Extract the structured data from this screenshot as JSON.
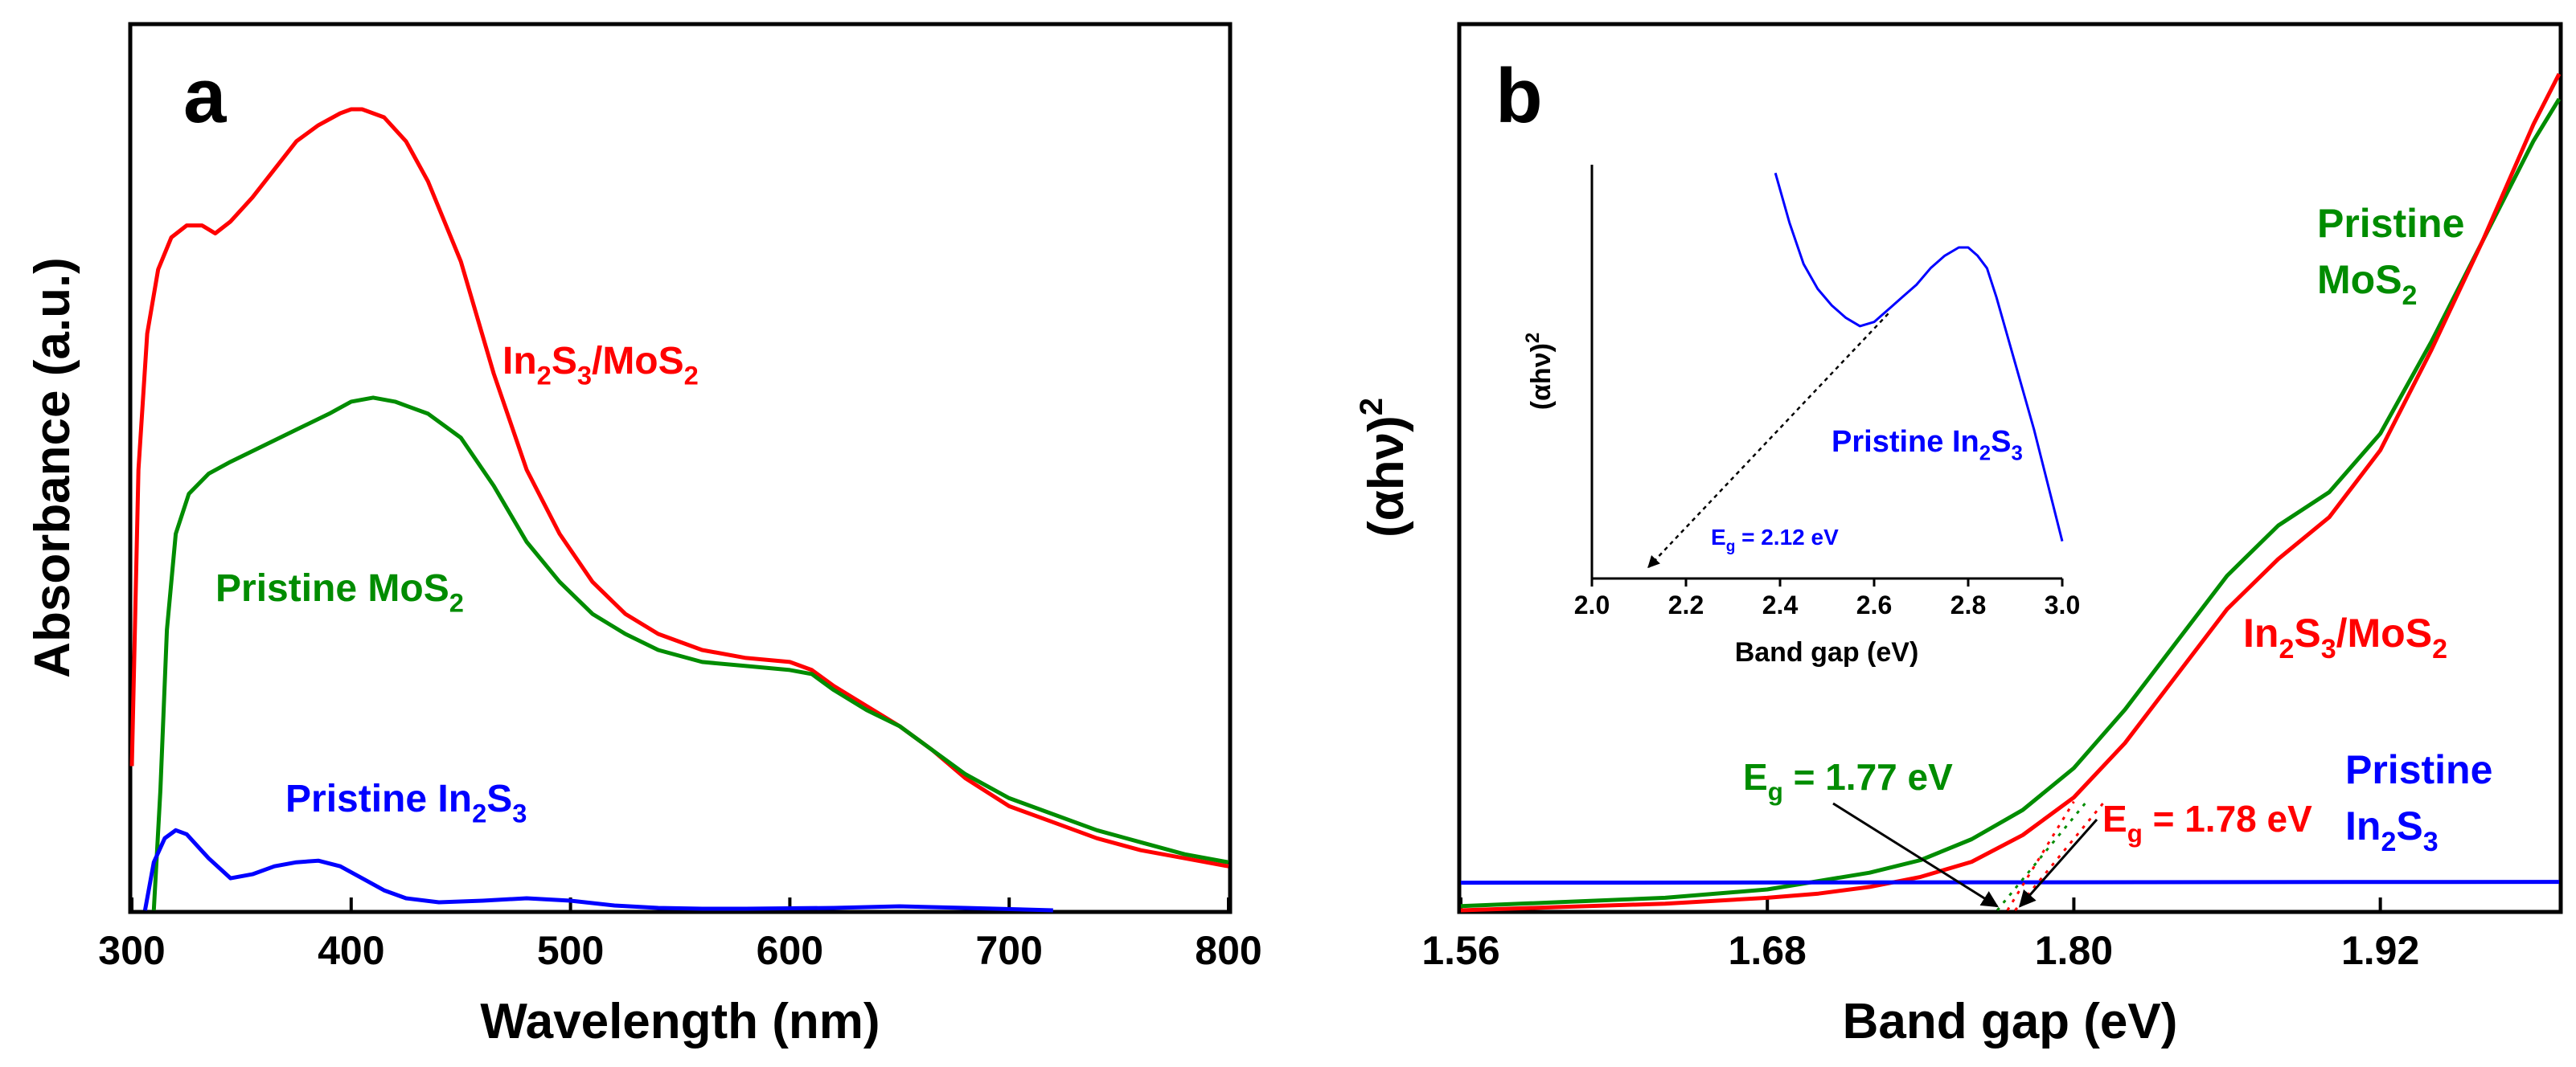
{
  "chart_data": [
    {
      "panel": "a",
      "type": "line",
      "xlabel": "Wavelength (nm)",
      "ylabel": "Absorbance (a.u.)",
      "xlim": [
        300,
        800
      ],
      "ylim": [
        0,
        1
      ],
      "xticks": [
        "300",
        "400",
        "500",
        "600",
        "700",
        "800"
      ],
      "series": [
        {
          "name": "In2S3/MoS2",
          "label_main": [
            "In",
            "S",
            "/MoS",
            ""
          ],
          "label_sub": [
            "2",
            "3",
            "2",
            ""
          ],
          "color": "#ff0000",
          "x": [
            300,
            303,
            307,
            312,
            318,
            325,
            332,
            338,
            345,
            355,
            365,
            375,
            385,
            395,
            400,
            405,
            415,
            425,
            435,
            450,
            465,
            480,
            495,
            510,
            525,
            540,
            560,
            580,
            600,
            610,
            620,
            635,
            650,
            665,
            680,
            700,
            720,
            740,
            760,
            780,
            800
          ],
          "y": [
            0.18,
            0.55,
            0.72,
            0.8,
            0.84,
            0.855,
            0.855,
            0.845,
            0.86,
            0.89,
            0.925,
            0.96,
            0.98,
            0.995,
            1.0,
            1.0,
            0.99,
            0.96,
            0.91,
            0.81,
            0.67,
            0.55,
            0.47,
            0.41,
            0.37,
            0.345,
            0.325,
            0.315,
            0.31,
            0.3,
            0.28,
            0.255,
            0.23,
            0.2,
            0.165,
            0.13,
            0.11,
            0.09,
            0.075,
            0.065,
            0.055
          ]
        },
        {
          "name": "Pristine MoS2",
          "label_main": [
            "Pristine MoS",
            ""
          ],
          "label_sub": [
            "2",
            ""
          ],
          "color": "#008c00",
          "x": [
            310,
            313,
            316,
            320,
            326,
            335,
            345,
            360,
            375,
            390,
            400,
            410,
            420,
            435,
            450,
            465,
            480,
            495,
            510,
            525,
            540,
            560,
            580,
            600,
            610,
            620,
            635,
            650,
            665,
            680,
            700,
            720,
            740,
            760,
            780,
            800
          ],
          "y": [
            0.0,
            0.15,
            0.35,
            0.47,
            0.52,
            0.545,
            0.56,
            0.58,
            0.6,
            0.62,
            0.635,
            0.64,
            0.635,
            0.62,
            0.59,
            0.53,
            0.46,
            0.41,
            0.37,
            0.345,
            0.325,
            0.31,
            0.305,
            0.3,
            0.295,
            0.275,
            0.25,
            0.23,
            0.2,
            0.17,
            0.14,
            0.12,
            0.1,
            0.085,
            0.07,
            0.06
          ]
        },
        {
          "name": "Pristine In2S3",
          "label_main": [
            "Pristine In",
            "S",
            ""
          ],
          "label_sub": [
            "2",
            "3",
            ""
          ],
          "color": "#0000ff",
          "x": [
            306,
            310,
            315,
            320,
            325,
            335,
            345,
            355,
            365,
            375,
            385,
            395,
            405,
            415,
            425,
            440,
            460,
            480,
            500,
            520,
            540,
            560,
            580,
            620,
            650,
            680,
            720
          ],
          "y": [
            0.0,
            0.06,
            0.09,
            0.1,
            0.095,
            0.065,
            0.04,
            0.045,
            0.055,
            0.06,
            0.062,
            0.055,
            0.04,
            0.025,
            0.015,
            0.01,
            0.012,
            0.015,
            0.012,
            0.006,
            0.003,
            0.002,
            0.002,
            0.003,
            0.005,
            0.003,
            0.0
          ]
        }
      ]
    },
    {
      "panel": "b",
      "type": "line",
      "xlabel": "Band gap (eV)",
      "ylabel_main": "(αhν)",
      "ylabel_sup": "2",
      "xlim": [
        1.56,
        1.99
      ],
      "ylim": [
        0,
        1
      ],
      "xticks": [
        "1.56",
        "1.68",
        "1.80",
        "1.92"
      ],
      "series": [
        {
          "name": "Pristine MoS2",
          "label_line1": "Pristine",
          "label_main": [
            "MoS",
            ""
          ],
          "label_sub": [
            "2",
            ""
          ],
          "color": "#008c00",
          "x": [
            1.56,
            1.6,
            1.64,
            1.68,
            1.7,
            1.72,
            1.74,
            1.76,
            1.78,
            1.8,
            1.82,
            1.84,
            1.86,
            1.88,
            1.9,
            1.92,
            1.94,
            1.96,
            1.98,
            1.99
          ],
          "y": [
            0.005,
            0.01,
            0.015,
            0.025,
            0.035,
            0.045,
            0.06,
            0.085,
            0.12,
            0.17,
            0.24,
            0.32,
            0.4,
            0.46,
            0.5,
            0.57,
            0.68,
            0.8,
            0.92,
            0.97
          ]
        },
        {
          "name": "In2S3/MoS2",
          "label_main": [
            "In",
            "S",
            "/MoS",
            ""
          ],
          "label_sub": [
            "2",
            "3",
            "2",
            ""
          ],
          "color": "#ff0000",
          "x": [
            1.56,
            1.6,
            1.64,
            1.68,
            1.7,
            1.72,
            1.74,
            1.76,
            1.78,
            1.8,
            1.82,
            1.84,
            1.86,
            1.88,
            1.9,
            1.92,
            1.94,
            1.96,
            1.98,
            1.99
          ],
          "y": [
            0.0,
            0.004,
            0.008,
            0.015,
            0.02,
            0.028,
            0.04,
            0.058,
            0.09,
            0.135,
            0.2,
            0.28,
            0.36,
            0.42,
            0.47,
            0.55,
            0.67,
            0.8,
            0.94,
            1.0
          ]
        },
        {
          "name": "Pristine In2S3",
          "label_line1": "Pristine",
          "label_main": [
            "In",
            "S",
            ""
          ],
          "label_sub": [
            "2",
            "3",
            ""
          ],
          "color": "#0000ff",
          "x": [
            1.56,
            1.99
          ],
          "y": [
            0.033,
            0.034
          ]
        }
      ],
      "annotations": [
        {
          "text_main": "E",
          "text_sub": "g",
          "text_rest": " = 1.77 eV",
          "color": "#008c00",
          "target_x": 1.77
        },
        {
          "text_main": "E",
          "text_sub": "g",
          "text_rest": " = 1.78 eV",
          "color": "#ff0000",
          "target_x": 1.777
        }
      ],
      "inset": {
        "type": "line",
        "xlabel": "Band gap (eV)",
        "ylabel_main": "(αhν)",
        "ylabel_sup": "2",
        "xlim": [
          2.0,
          3.0
        ],
        "ylim": [
          0,
          1
        ],
        "xticks": [
          "2.0",
          "2.2",
          "2.4",
          "2.6",
          "2.8",
          "3.0"
        ],
        "series_label_main": [
          "Pristine In",
          "S",
          ""
        ],
        "series_label_sub": [
          "2",
          "3",
          ""
        ],
        "annotation_main": "E",
        "annotation_sub": "g",
        "annotation_rest": " = 2.12 eV",
        "tangent_from_x": 2.12,
        "tangent_to_x": 2.63,
        "color": "#0000ff",
        "x": [
          2.39,
          2.42,
          2.45,
          2.48,
          2.51,
          2.54,
          2.57,
          2.6,
          2.63,
          2.66,
          2.69,
          2.72,
          2.75,
          2.78,
          2.8,
          2.82,
          2.84,
          2.86,
          2.88,
          2.9,
          2.92,
          2.94,
          2.96,
          2.98,
          3.0
        ],
        "y": [
          0.98,
          0.86,
          0.76,
          0.7,
          0.66,
          0.63,
          0.61,
          0.62,
          0.65,
          0.68,
          0.71,
          0.75,
          0.78,
          0.8,
          0.8,
          0.78,
          0.75,
          0.68,
          0.6,
          0.52,
          0.44,
          0.36,
          0.27,
          0.18,
          0.09
        ]
      }
    }
  ],
  "panel_labels": [
    "a",
    "b"
  ]
}
